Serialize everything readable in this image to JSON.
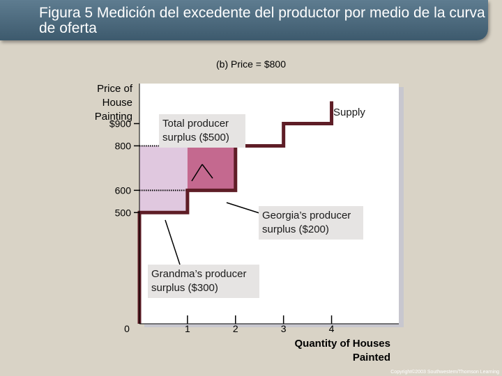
{
  "header": {
    "title": "Figura 5 Medición del excedente del productor por medio de la curva de oferta"
  },
  "chart_data": {
    "type": "line",
    "title": "(b) Price = $800",
    "ylabel": "Price of House Painting",
    "xlabel": "Quantity of Houses Painted",
    "x_ticks": [
      "0",
      "1",
      "2",
      "3",
      "4"
    ],
    "y_ticks": [
      {
        "value": 900,
        "label": "$900"
      },
      {
        "value": 800,
        "label": "800"
      },
      {
        "value": 600,
        "label": "600"
      },
      {
        "value": 500,
        "label": "500"
      }
    ],
    "xlim": [
      0,
      5.4
    ],
    "ylim": [
      0,
      1080
    ],
    "price": 800,
    "series": [
      {
        "name": "Supply",
        "x": [
          0,
          0,
          1,
          1,
          2,
          2,
          3,
          3,
          4,
          4
        ],
        "y": [
          0,
          500,
          500,
          600,
          600,
          800,
          800,
          900,
          900,
          1000
        ]
      }
    ],
    "surplus_blocks": [
      {
        "x0": 0,
        "x1": 1,
        "y0": 500,
        "y1": 800,
        "color": "#e0c8df"
      },
      {
        "x0": 1,
        "x1": 2,
        "y0": 600,
        "y1": 800,
        "color": "#c4698f"
      }
    ],
    "annotations": [
      {
        "text": "Total producer surplus ($500)"
      },
      {
        "text": "Georgia’s producer surplus ($200)"
      },
      {
        "text": "Grandma’s producer surplus ($300)"
      }
    ]
  },
  "colors": {
    "curve": "#5e1d26",
    "plot_bg": "#ffffff"
  },
  "footer": {
    "copyright": "Copyright©2003 Southwestern/Thomson Learning"
  }
}
